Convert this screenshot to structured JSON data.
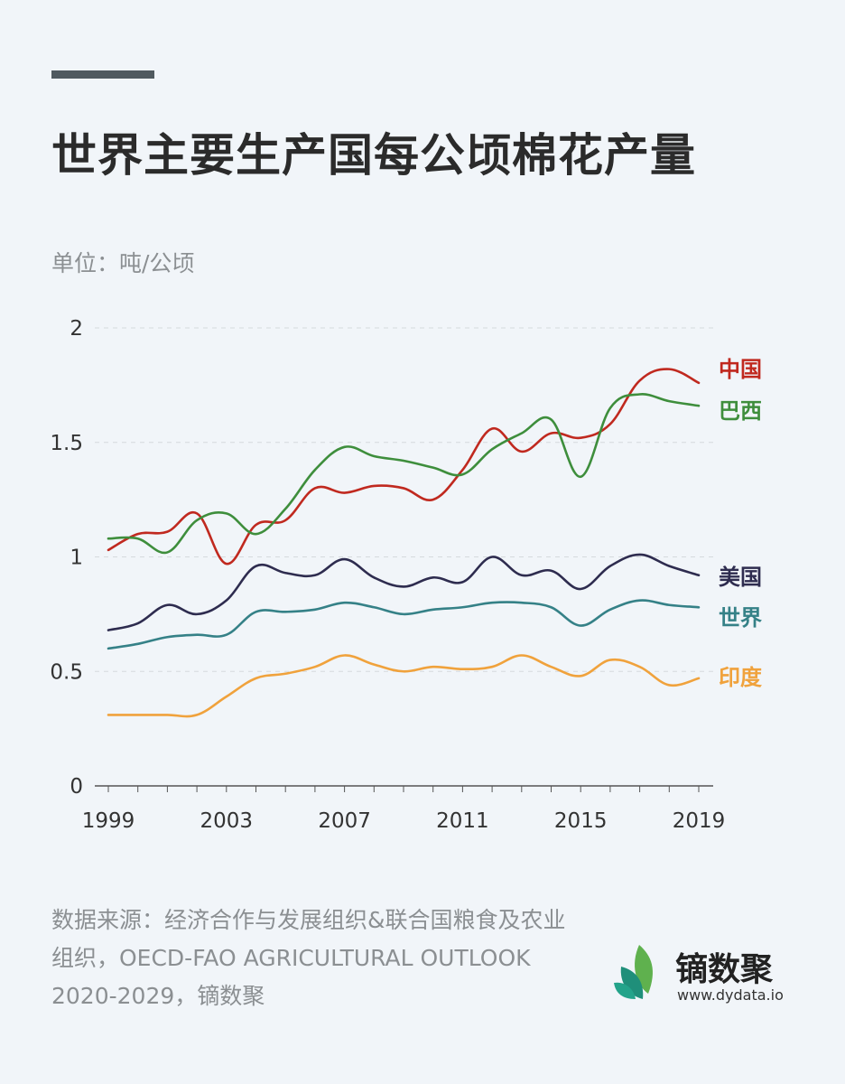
{
  "title": "世界主要生产国每公顷棉花产量",
  "unit": "单位：吨/公顷",
  "source": "数据来源：经济合作与发展组织&联合国粮食及农业组织，OECD-FAO AGRICULTURAL OUTLOOK 2020-2029，镝数聚",
  "logo": {
    "name": "镝数聚",
    "url": "www.dydata.io"
  },
  "chart_data": {
    "type": "line",
    "x": [
      1999,
      2000,
      2001,
      2002,
      2003,
      2004,
      2005,
      2006,
      2007,
      2008,
      2009,
      2010,
      2011,
      2012,
      2013,
      2014,
      2015,
      2016,
      2017,
      2018,
      2019
    ],
    "xticks": [
      "1999",
      "2003",
      "2007",
      "2011",
      "2015",
      "2019"
    ],
    "yticks": [
      "0",
      "0.5",
      "1",
      "1.5",
      "2"
    ],
    "ylim": [
      0,
      2
    ],
    "grid": true,
    "series": [
      {
        "name": "中国",
        "color": "#c0291f",
        "values": [
          1.03,
          1.1,
          1.11,
          1.19,
          0.97,
          1.14,
          1.16,
          1.3,
          1.28,
          1.31,
          1.3,
          1.25,
          1.38,
          1.56,
          1.46,
          1.54,
          1.52,
          1.58,
          1.77,
          1.82,
          1.76
        ]
      },
      {
        "name": "巴西",
        "color": "#3e8e3c",
        "values": [
          1.08,
          1.08,
          1.02,
          1.16,
          1.19,
          1.1,
          1.21,
          1.38,
          1.48,
          1.44,
          1.42,
          1.39,
          1.36,
          1.47,
          1.54,
          1.6,
          1.35,
          1.65,
          1.71,
          1.68,
          1.66
        ]
      },
      {
        "name": "美国",
        "color": "#2e2c4f",
        "values": [
          0.68,
          0.71,
          0.79,
          0.75,
          0.81,
          0.96,
          0.93,
          0.92,
          0.99,
          0.91,
          0.87,
          0.91,
          0.89,
          1.0,
          0.92,
          0.94,
          0.86,
          0.96,
          1.01,
          0.96,
          0.92
        ]
      },
      {
        "name": "世界",
        "color": "#358187",
        "values": [
          0.6,
          0.62,
          0.65,
          0.66,
          0.66,
          0.76,
          0.76,
          0.77,
          0.8,
          0.78,
          0.75,
          0.77,
          0.78,
          0.8,
          0.8,
          0.78,
          0.7,
          0.77,
          0.81,
          0.79,
          0.78
        ]
      },
      {
        "name": "印度",
        "color": "#f0a23c",
        "values": [
          0.31,
          0.31,
          0.31,
          0.31,
          0.39,
          0.47,
          0.49,
          0.52,
          0.57,
          0.53,
          0.5,
          0.52,
          0.51,
          0.52,
          0.57,
          0.52,
          0.48,
          0.55,
          0.52,
          0.44,
          0.47
        ]
      }
    ]
  }
}
